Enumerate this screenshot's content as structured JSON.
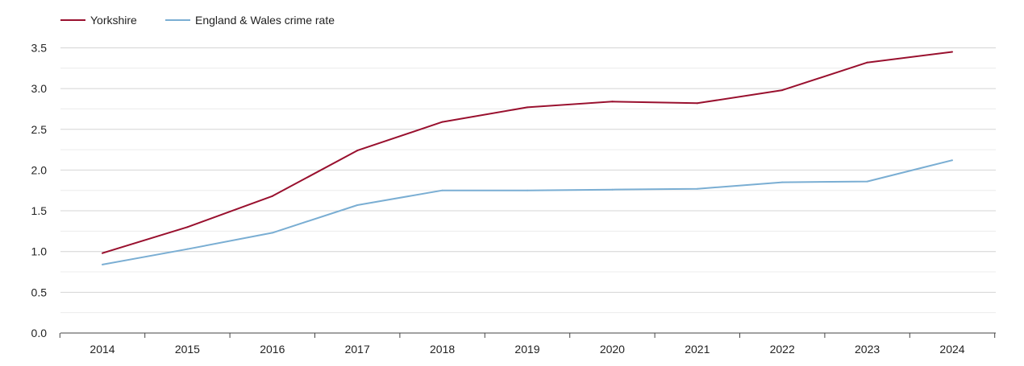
{
  "chart_data": {
    "type": "line",
    "x": [
      "2014",
      "2015",
      "2016",
      "2017",
      "2018",
      "2019",
      "2020",
      "2021",
      "2022",
      "2023",
      "2024"
    ],
    "series": [
      {
        "name": "Yorkshire",
        "color": "#99102e",
        "values": [
          0.98,
          1.3,
          1.68,
          2.24,
          2.59,
          2.77,
          2.84,
          2.82,
          2.98,
          3.32,
          3.45
        ]
      },
      {
        "name": "England & Wales crime rate",
        "color": "#7aaed3",
        "values": [
          0.84,
          1.03,
          1.23,
          1.57,
          1.75,
          1.75,
          1.76,
          1.77,
          1.85,
          1.86,
          2.12
        ]
      }
    ],
    "yticks": [
      "0.0",
      "0.5",
      "1.0",
      "1.5",
      "2.0",
      "2.5",
      "3.0",
      "3.5"
    ],
    "ylim": [
      0,
      3.6
    ],
    "grid": true,
    "legend": "top-left"
  }
}
